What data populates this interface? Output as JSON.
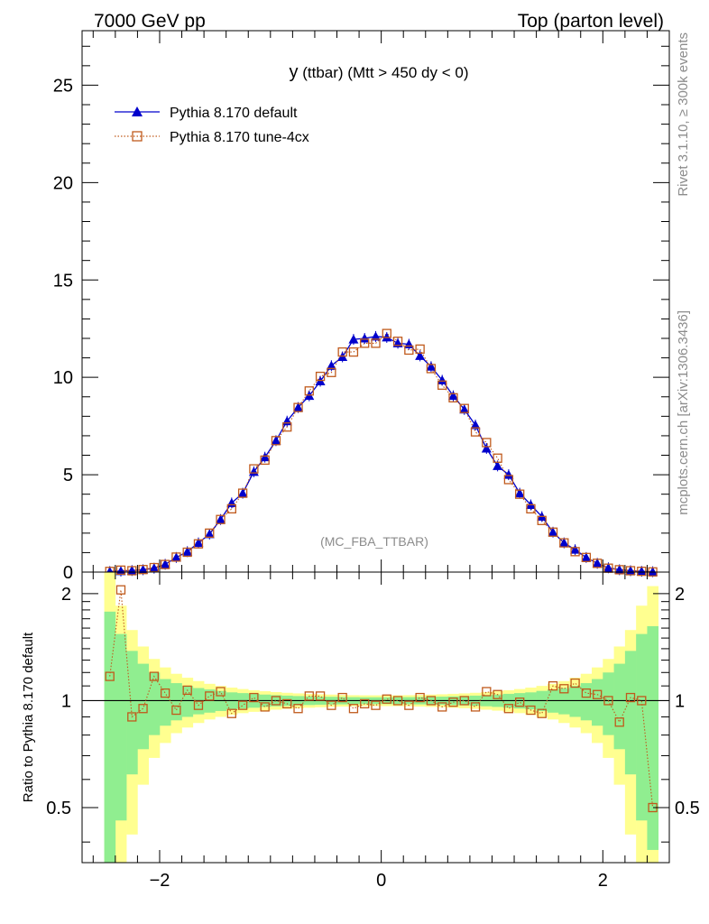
{
  "header": {
    "left": "7000 GeV pp",
    "right": "Top (parton level)"
  },
  "side_text": {
    "rivet": "Rivet 3.1.10, ≥ 300k events",
    "mcplots": "mcplots.cern.ch [arXiv:1306.3436]"
  },
  "chart_data": [
    {
      "type": "line",
      "title": "y (ttbar) (Mtt > 450 dy < 0)",
      "watermark": "(MC_FBA_TTBAR)",
      "xlabel": "",
      "ylabel": "",
      "xlim": [
        -2.7,
        2.6
      ],
      "ylim": [
        0,
        27.8
      ],
      "yticks": [
        0,
        5,
        10,
        15,
        20,
        25
      ],
      "ytick_labels": [
        "0",
        "5",
        "10",
        "15",
        "20",
        "25"
      ],
      "grid": false,
      "legend_position": "top-left",
      "x": [
        -2.45,
        -2.35,
        -2.25,
        -2.15,
        -2.05,
        -1.95,
        -1.85,
        -1.75,
        -1.65,
        -1.55,
        -1.45,
        -1.35,
        -1.25,
        -1.15,
        -1.05,
        -0.95,
        -0.85,
        -0.75,
        -0.65,
        -0.55,
        -0.45,
        -0.35,
        -0.25,
        -0.15,
        -0.05,
        0.05,
        0.15,
        0.25,
        0.35,
        0.45,
        0.55,
        0.65,
        0.75,
        0.85,
        0.95,
        1.05,
        1.15,
        1.25,
        1.35,
        1.45,
        1.55,
        1.65,
        1.75,
        1.85,
        1.95,
        2.05,
        2.15,
        2.25,
        2.35,
        2.45
      ],
      "series": [
        {
          "name": "Pythia 8.170 default",
          "color": "#0000cc",
          "marker": "triangle",
          "values": [
            0.03,
            0.05,
            0.08,
            0.12,
            0.2,
            0.4,
            0.75,
            1.05,
            1.5,
            1.95,
            2.7,
            3.55,
            4.05,
            5.15,
            5.9,
            6.75,
            7.75,
            8.45,
            9.05,
            9.8,
            10.6,
            11.05,
            11.95,
            12.0,
            12.1,
            12.05,
            11.75,
            11.7,
            11.1,
            10.55,
            9.85,
            9.05,
            8.35,
            7.55,
            6.35,
            5.45,
            5.0,
            4.05,
            3.45,
            2.85,
            2.05,
            1.5,
            1.15,
            0.75,
            0.45,
            0.22,
            0.12,
            0.07,
            0.04,
            0.02
          ]
        },
        {
          "name": "Pythia 8.170 tune-4cx",
          "color": "#c05a1c",
          "marker": "open-square",
          "values": [
            0.035,
            0.1,
            0.07,
            0.13,
            0.23,
            0.39,
            0.77,
            1.02,
            1.45,
            2.0,
            2.7,
            3.25,
            4.05,
            5.3,
            5.75,
            6.75,
            7.45,
            8.45,
            9.3,
            10.05,
            10.25,
            11.3,
            11.3,
            11.75,
            11.75,
            12.25,
            11.85,
            11.4,
            11.45,
            10.45,
            9.6,
            8.95,
            8.4,
            7.2,
            6.65,
            5.85,
            4.75,
            4.0,
            3.25,
            2.65,
            2.05,
            1.5,
            1.05,
            0.75,
            0.45,
            0.2,
            0.12,
            0.07,
            0.04,
            0.01
          ]
        }
      ]
    },
    {
      "type": "line",
      "title": "",
      "xlabel": "",
      "ylabel": "Ratio to Pythia 8.170 default",
      "xlim": [
        -2.7,
        2.6
      ],
      "ylim": [
        0.35,
        2.3
      ],
      "yticks": [
        0.5,
        1,
        2
      ],
      "ytick_labels": [
        "0.5",
        "1",
        "2"
      ],
      "xticks": [
        -2,
        0,
        2
      ],
      "xtick_labels": [
        "−2",
        "0",
        "2"
      ],
      "grid": false,
      "reference_line": 1,
      "bands": {
        "inner_color": "#90ee90",
        "outer_color": "#ffff90",
        "inner_halfwidth": [
          0.78,
          0.54,
          0.38,
          0.27,
          0.2,
          0.15,
          0.12,
          0.1,
          0.085,
          0.075,
          0.065,
          0.055,
          0.05,
          0.045,
          0.04,
          0.036,
          0.033,
          0.03,
          0.028,
          0.026,
          0.025,
          0.024,
          0.023,
          0.022,
          0.022,
          0.022,
          0.022,
          0.023,
          0.024,
          0.025,
          0.026,
          0.028,
          0.03,
          0.033,
          0.036,
          0.04,
          0.045,
          0.05,
          0.055,
          0.065,
          0.075,
          0.085,
          0.1,
          0.12,
          0.15,
          0.2,
          0.27,
          0.38,
          0.54,
          0.62
        ],
        "outer_halfwidth": [
          1.3,
          0.85,
          0.58,
          0.42,
          0.31,
          0.24,
          0.19,
          0.16,
          0.135,
          0.115,
          0.1,
          0.088,
          0.078,
          0.07,
          0.063,
          0.057,
          0.052,
          0.048,
          0.045,
          0.042,
          0.04,
          0.038,
          0.036,
          0.035,
          0.035,
          0.035,
          0.035,
          0.036,
          0.038,
          0.04,
          0.042,
          0.045,
          0.048,
          0.052,
          0.057,
          0.063,
          0.07,
          0.078,
          0.088,
          0.1,
          0.115,
          0.135,
          0.16,
          0.19,
          0.24,
          0.31,
          0.42,
          0.58,
          0.85,
          1.1
        ]
      },
      "series": [
        {
          "name": "Pythia 8.170 tune-4cx",
          "color": "#c05a1c",
          "marker": "open-square",
          "values": [
            1.17,
            2.05,
            0.9,
            0.95,
            1.17,
            1.05,
            0.94,
            1.07,
            0.97,
            1.03,
            1.06,
            0.92,
            0.97,
            1.02,
            0.96,
            1.0,
            0.98,
            0.95,
            1.03,
            1.03,
            0.97,
            1.02,
            0.95,
            0.98,
            0.97,
            1.01,
            1.0,
            0.97,
            1.02,
            1.0,
            0.96,
            0.99,
            1.0,
            0.96,
            1.06,
            1.04,
            0.95,
            0.99,
            0.94,
            0.92,
            1.1,
            1.08,
            1.12,
            1.05,
            1.04,
            1.0,
            0.87,
            1.02,
            1.0,
            0.5
          ]
        }
      ]
    }
  ]
}
